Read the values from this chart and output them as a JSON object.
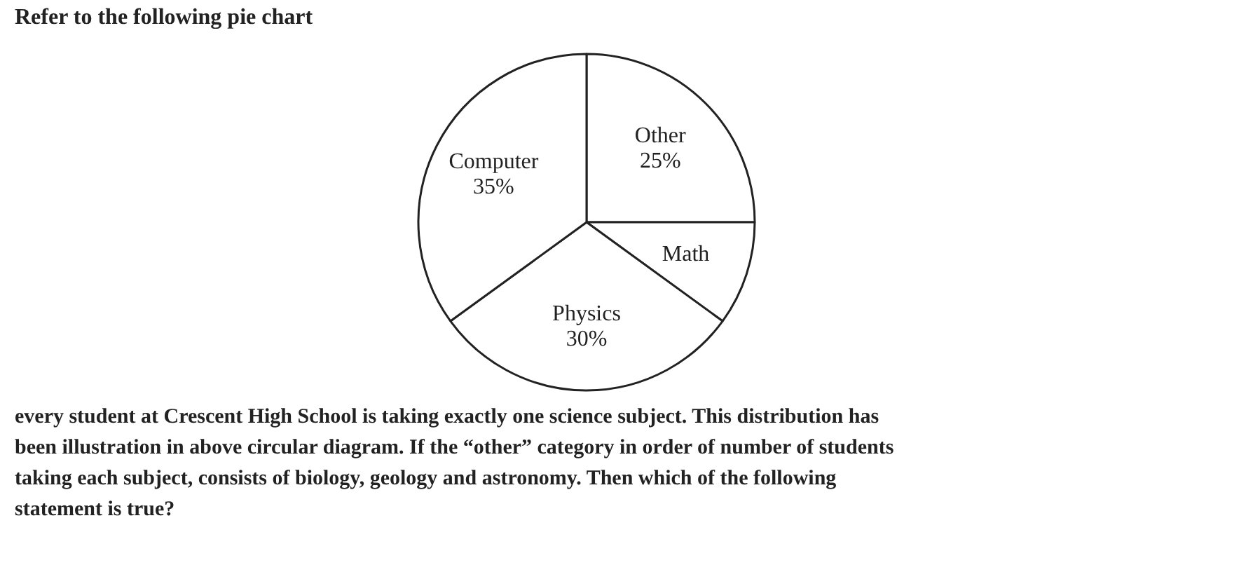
{
  "chart_data": {
    "type": "pie",
    "title": "Refer to the following pie chart",
    "categories": [
      "Other",
      "Math",
      "Physics",
      "Computer"
    ],
    "values": [
      25,
      10,
      30,
      35
    ],
    "colors": [
      "#ffffff",
      "#ffffff",
      "#ffffff",
      "#ffffff"
    ],
    "value_labels": [
      "25%",
      null,
      "30%",
      "35%"
    ],
    "annotations": [
      "every student at Crescent High School is taking exactly one science subject. This distribution has been illustration in above circular diagram. If the “other” category in order of number of students taking each subject, consists of biology, geology and astronomy. Then which of the following statement is true?"
    ]
  }
}
